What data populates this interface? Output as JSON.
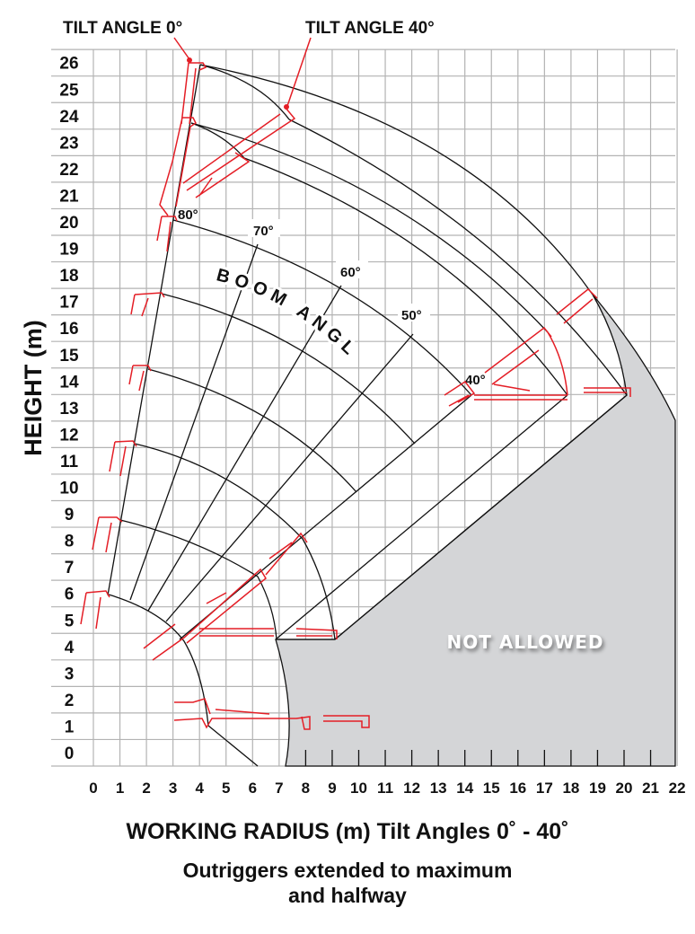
{
  "header": {
    "tilt_0": "TILT ANGLE  0°",
    "tilt_40": "TILT ANGLE  40°"
  },
  "axes": {
    "y_title": "HEIGHT (m)",
    "y_ticks": [
      "0",
      "1",
      "2",
      "3",
      "4",
      "5",
      "6",
      "7",
      "8",
      "9",
      "10",
      "11",
      "12",
      "13",
      "14",
      "15",
      "16",
      "17",
      "18",
      "19",
      "20",
      "21",
      "22",
      "23",
      "24",
      "25",
      "26"
    ],
    "x_ticks": [
      "0",
      "1",
      "2",
      "3",
      "4",
      "5",
      "6",
      "7",
      "8",
      "9",
      "10",
      "11",
      "12",
      "13",
      "14",
      "15",
      "16",
      "17",
      "18",
      "19",
      "20",
      "21",
      "22"
    ]
  },
  "boom_angle": {
    "title": "BOOM ANGLE",
    "a80": "80°",
    "a70": "70°",
    "a60": "60°",
    "a50": "50°",
    "a40": "40°"
  },
  "zone_label": "NOT ALLOWED",
  "footer": {
    "title": "WORKING RADIUS (m)  Tilt Angles 0˚ - 40˚",
    "line1": "Outriggers extended to maximum",
    "line2": "and halfway"
  },
  "colors": {
    "grid": "#b3b3b3",
    "boom": "#e41e26",
    "not_allowed": "#d4d5d7",
    "lines": "#111111"
  }
}
